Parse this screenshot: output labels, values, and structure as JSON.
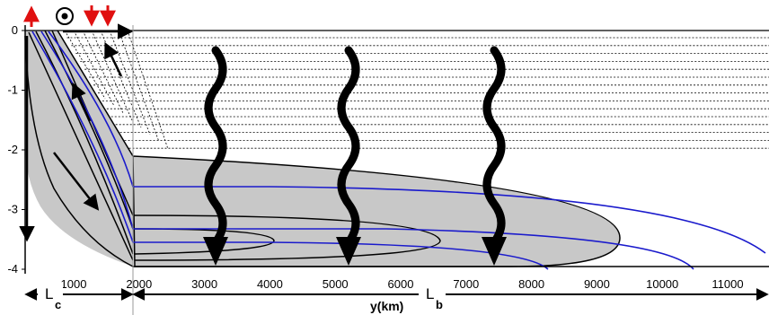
{
  "colors": {
    "background": "#ffffff",
    "shade": "#c8c8c8",
    "line": "#000000",
    "blue": "#1a1acc",
    "red": "#e01010"
  },
  "axis": {
    "y_ticks": [
      "0",
      "-1",
      "-2",
      "-3",
      "-4"
    ],
    "x_ticks": [
      "1000",
      "2000",
      "3000",
      "4000",
      "5000",
      "6000",
      "7000",
      "8000",
      "9000",
      "10000",
      "11000"
    ],
    "x_title": "y(km)"
  },
  "spans": {
    "lc": {
      "main": "L",
      "sub": "c"
    },
    "lb": {
      "main": "L",
      "sub": "b"
    }
  },
  "icons": [
    "up-arrow-icon",
    "out-of-page-symbol-icon",
    "down-arrow-icon",
    "wavy-arrow-icon"
  ]
}
